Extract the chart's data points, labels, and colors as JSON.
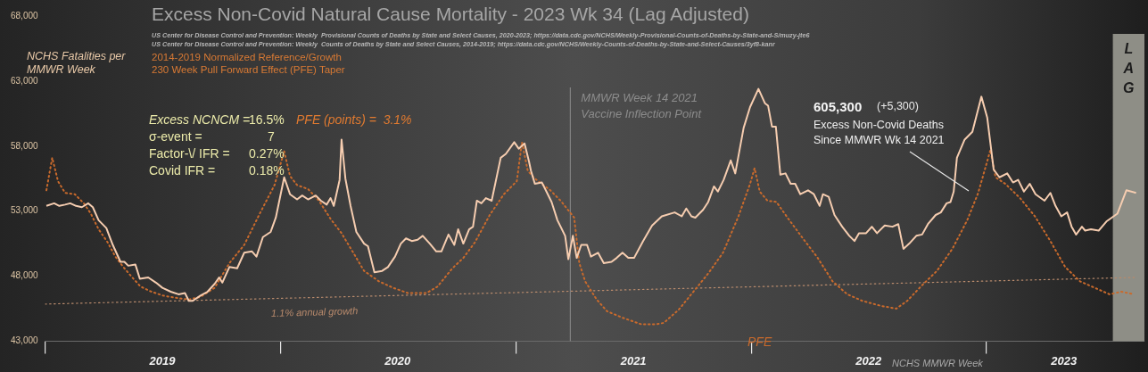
{
  "chart_data": {
    "type": "line",
    "title": "Excess Non-Covid Natural Cause Mortality - 2023 Wk 34 (Lag Adjusted)",
    "xlabel": "NCHS MMWR Week",
    "ylabel": "NCHS Fatalities per MMWR Week",
    "marker": "none",
    "xlim": [
      "2019-01-01",
      "2023-09-03"
    ],
    "xticks": [
      {
        "value": "2019-01-01",
        "label": null
      },
      {
        "value": "2019-07-02",
        "label": "2019"
      },
      {
        "value": "2020-01-01",
        "label": null
      },
      {
        "value": "2020-07-01",
        "label": "2020"
      },
      {
        "value": "2021-01-01",
        "label": null
      },
      {
        "value": "2021-07-02",
        "label": "2021"
      },
      {
        "value": "2022-01-01",
        "label": null
      },
      {
        "value": "2022-07-02",
        "label": "2022"
      },
      {
        "value": "2023-01-01",
        "label": null
      },
      {
        "value": "2023-05-01",
        "label": "2023"
      }
    ],
    "ylim": [
      43000,
      68000
    ],
    "yticks": [
      {
        "value": 43000,
        "label": "43,000"
      },
      {
        "value": 48000,
        "label": "48,000"
      },
      {
        "value": 53000,
        "label": "53,000"
      },
      {
        "value": 58000,
        "label": "58,000"
      },
      {
        "value": 63000,
        "label": "63,000"
      },
      {
        "value": 68000,
        "label": "68,000"
      }
    ],
    "series": [
      {
        "color": "#f6cdb0",
        "line_style": "solid",
        "x": [
          "2019-01-03",
          "2019-01-15",
          "2019-01-23",
          "2019-02-01",
          "2019-02-09",
          "2019-02-18",
          "2019-02-27",
          "2019-03-09",
          "2019-03-16",
          "2019-03-25",
          "2019-04-06",
          "2019-04-16",
          "2019-04-28",
          "2019-05-04",
          "2019-05-10",
          "2019-05-21",
          "2019-05-28",
          "2019-06-10",
          "2019-06-22",
          "2019-07-02",
          "2019-07-15",
          "2019-07-27",
          "2019-08-06",
          "2019-08-12",
          "2019-08-18",
          "2019-08-30",
          "2019-09-10",
          "2019-09-21",
          "2019-09-28",
          "2019-10-03",
          "2019-10-14",
          "2019-10-26",
          "2019-11-06",
          "2019-11-18",
          "2019-11-25",
          "2019-12-05",
          "2019-12-17",
          "2019-12-25",
          "2020-01-07",
          "2020-01-16",
          "2020-01-27",
          "2020-02-04",
          "2020-02-13",
          "2020-02-25",
          "2020-03-04",
          "2020-03-13",
          "2020-03-19",
          "2020-03-24",
          "2020-04-02",
          "2020-04-05",
          "2020-04-11",
          "2020-04-19",
          "2020-04-28",
          "2020-05-10",
          "2020-05-16",
          "2020-05-26",
          "2020-06-07",
          "2020-06-16",
          "2020-06-27",
          "2020-07-06",
          "2020-07-14",
          "2020-07-23",
          "2020-08-01",
          "2020-08-09",
          "2020-08-20",
          "2020-08-30",
          "2020-09-07",
          "2020-09-18",
          "2020-09-27",
          "2020-10-03",
          "2020-10-11",
          "2020-10-20",
          "2020-10-26",
          "2020-11-01",
          "2020-11-08",
          "2020-11-15",
          "2020-11-24",
          "2020-12-08",
          "2020-12-16",
          "2020-12-29",
          "2021-01-05",
          "2021-01-14",
          "2021-01-21",
          "2021-01-24",
          "2021-01-30",
          "2021-02-10",
          "2021-02-17",
          "2021-02-25",
          "2021-03-06",
          "2021-03-18",
          "2021-03-23",
          "2021-03-30",
          "2021-04-05",
          "2021-04-12",
          "2021-04-21",
          "2021-04-27",
          "2021-05-08",
          "2021-05-17",
          "2021-05-29",
          "2021-06-06",
          "2021-06-15",
          "2021-06-24",
          "2021-07-03",
          "2021-07-17",
          "2021-07-31",
          "2021-08-15",
          "2021-09-04",
          "2021-09-15",
          "2021-09-22",
          "2021-09-30",
          "2021-10-06",
          "2021-10-18",
          "2021-10-26",
          "2021-11-04",
          "2021-11-10",
          "2021-11-19",
          "2021-11-30",
          "2021-12-07",
          "2021-12-20",
          "2021-12-30",
          "2022-01-12",
          "2022-01-22",
          "2022-01-27",
          "2022-02-02",
          "2022-02-08",
          "2022-02-15",
          "2022-02-23",
          "2022-03-03",
          "2022-03-10",
          "2022-03-18",
          "2022-03-30",
          "2022-04-08",
          "2022-04-17",
          "2022-04-22",
          "2022-05-01",
          "2022-05-10",
          "2022-05-22",
          "2022-06-02",
          "2022-06-10",
          "2022-06-17",
          "2022-06-28",
          "2022-07-07",
          "2022-07-15",
          "2022-07-27",
          "2022-08-08",
          "2022-08-17",
          "2022-08-25",
          "2022-09-03",
          "2022-09-14",
          "2022-09-23",
          "2022-10-02",
          "2022-10-14",
          "2022-10-22",
          "2022-10-31",
          "2022-11-06",
          "2022-11-11",
          "2022-11-16",
          "2022-11-28",
          "2022-12-10",
          "2022-12-24",
          "2023-01-02",
          "2023-01-12",
          "2023-01-21",
          "2023-02-02",
          "2023-02-11",
          "2023-02-19",
          "2023-02-28",
          "2023-03-09",
          "2023-03-18",
          "2023-04-01",
          "2023-04-10",
          "2023-04-18",
          "2023-04-27",
          "2023-05-06",
          "2023-05-13",
          "2023-05-20",
          "2023-05-29",
          "2023-06-03",
          "2023-06-12",
          "2023-06-24",
          "2023-07-06",
          "2023-07-23",
          "2023-08-06",
          "2023-08-21"
        ],
        "values": [
          53400,
          53600,
          53400,
          53500,
          53600,
          53400,
          53300,
          53600,
          53300,
          52300,
          51700,
          50400,
          49100,
          49100,
          48800,
          48900,
          47800,
          47900,
          47500,
          47100,
          46800,
          46600,
          46700,
          46100,
          46100,
          46500,
          46800,
          47400,
          47900,
          47500,
          48700,
          48600,
          49800,
          49900,
          49500,
          51000,
          51400,
          52500,
          55600,
          54300,
          53900,
          54200,
          53900,
          54200,
          53800,
          53500,
          54000,
          53400,
          55400,
          58500,
          55500,
          53400,
          51400,
          50500,
          50300,
          48300,
          48400,
          48700,
          49500,
          50500,
          50900,
          50700,
          50800,
          51100,
          50500,
          49900,
          49900,
          51200,
          50400,
          51600,
          50500,
          51600,
          51800,
          53800,
          53600,
          54000,
          53800,
          57100,
          57400,
          58300,
          57800,
          58200,
          56800,
          56100,
          55100,
          55200,
          54500,
          53700,
          52300,
          51100,
          49300,
          51100,
          49400,
          50400,
          50400,
          49500,
          49800,
          49000,
          49100,
          49400,
          49800,
          49400,
          49400,
          50700,
          51900,
          52600,
          52900,
          52600,
          53200,
          52600,
          52500,
          53100,
          53700,
          54900,
          54500,
          55400,
          56900,
          55900,
          59400,
          61000,
          62400,
          61300,
          61100,
          59500,
          59500,
          55800,
          55900,
          55100,
          55100,
          54300,
          54600,
          54300,
          53400,
          54300,
          54100,
          52700,
          51800,
          51100,
          50700,
          51300,
          51300,
          51800,
          51300,
          51900,
          51800,
          52000,
          50100,
          50500,
          51100,
          51200,
          52000,
          52700,
          52900,
          53600,
          53700,
          54500,
          57100,
          58500,
          59100,
          61800,
          60200,
          56200,
          55600,
          55900,
          55200,
          55400,
          54500,
          55100,
          54300,
          53800,
          54400,
          53400,
          52600,
          52900,
          51800,
          51200,
          51800,
          51500,
          51600,
          51500,
          52200,
          52800,
          54600,
          54400
        ]
      },
      {
        "name": "PFE",
        "color": "#c96a2c",
        "line_style": "dotted",
        "x": [
          "2019-01-03",
          "2019-01-12",
          "2019-01-21",
          "2019-02-01",
          "2019-02-16",
          "2019-03-02",
          "2019-03-13",
          "2019-03-25",
          "2019-04-08",
          "2019-04-20",
          "2019-05-04",
          "2019-05-18",
          "2019-05-29",
          "2019-06-15",
          "2019-07-03",
          "2019-07-27",
          "2019-08-12",
          "2019-08-30",
          "2019-09-21",
          "2019-10-14",
          "2019-11-06",
          "2019-11-30",
          "2019-12-23",
          "2020-01-07",
          "2020-01-16",
          "2020-01-27",
          "2020-02-13",
          "2020-03-01",
          "2020-03-19",
          "2020-04-05",
          "2020-04-22",
          "2020-05-10",
          "2020-06-02",
          "2020-06-24",
          "2020-07-17",
          "2020-08-15",
          "2020-09-01",
          "2020-09-24",
          "2020-10-11",
          "2020-10-29",
          "2020-11-21",
          "2020-12-13",
          "2021-01-02",
          "2021-01-10",
          "2021-01-19",
          "2021-01-30",
          "2021-02-23",
          "2021-03-11",
          "2021-04-01",
          "2021-04-09",
          "2021-04-18",
          "2021-05-06",
          "2021-05-22",
          "2021-06-15",
          "2021-07-14",
          "2021-08-06",
          "2021-08-18",
          "2021-09-10",
          "2021-10-03",
          "2021-10-26",
          "2021-11-18",
          "2021-12-12",
          "2021-12-30",
          "2022-01-06",
          "2022-01-14",
          "2022-01-26",
          "2022-02-09",
          "2022-02-26",
          "2022-03-22",
          "2022-04-14",
          "2022-05-07",
          "2022-05-30",
          "2022-06-22",
          "2022-07-22",
          "2022-08-14",
          "2022-08-31",
          "2022-09-23",
          "2022-10-16",
          "2022-11-09",
          "2022-12-02",
          "2022-12-19",
          "2023-01-07",
          "2023-01-15",
          "2023-01-30",
          "2023-02-22",
          "2023-03-17",
          "2023-04-10",
          "2023-05-03",
          "2023-05-26",
          "2023-06-18",
          "2023-07-11",
          "2023-07-29",
          "2023-08-18"
        ],
        "values": [
          54600,
          57100,
          55300,
          54400,
          54300,
          53600,
          52800,
          51600,
          50600,
          49500,
          48600,
          47800,
          47200,
          46800,
          46500,
          46300,
          46200,
          46400,
          47100,
          49000,
          50400,
          52800,
          55000,
          57600,
          55700,
          55000,
          54700,
          53800,
          52400,
          51300,
          49900,
          48400,
          47600,
          47100,
          46700,
          46700,
          47200,
          48600,
          49400,
          50600,
          52700,
          54300,
          55300,
          58300,
          56100,
          55500,
          54600,
          53800,
          52500,
          49000,
          47600,
          46200,
          45300,
          44800,
          44300,
          44300,
          44400,
          45400,
          46800,
          48200,
          49800,
          52600,
          55100,
          56300,
          54500,
          53800,
          53700,
          52500,
          50900,
          49400,
          47600,
          46600,
          46100,
          45700,
          45500,
          46100,
          47300,
          48400,
          50100,
          52300,
          54400,
          57700,
          55600,
          55100,
          54000,
          52600,
          50700,
          48700,
          47600,
          47100,
          46600,
          46800,
          46600
        ]
      },
      {
        "name": "1.1% annual growth",
        "type": "line",
        "color": "#b88a6c",
        "line_style": "dotted",
        "x": [
          "2019-01-01",
          "2023-08-20"
        ],
        "values": [
          45850,
          47900
        ]
      }
    ],
    "ref_lines": [
      {
        "axis": "x",
        "value": "2021-03-26",
        "label": "MMWR Week 14 2021\nVaccine Inflection Point",
        "color": "#8c8c8c",
        "line_style": "solid"
      }
    ],
    "bands": [
      {
        "axis": "x",
        "from": "2023-07-16",
        "to": "2023-09-03",
        "label": "LAG",
        "color": "#8e8e86"
      }
    ],
    "annotations": [
      "US Center for Disease Control and Prevention: Weekly  Provisional Counts of Deaths by State and Select Causes, 2020-2023; https://data.cdc.gov/NCHS/Weekly-Provisional-Counts-of-Deaths-by-State-and-S/muzy-jte6",
      "US Center for Disease Control and Prevention: Weekly  Counts of Deaths by State and Select Causes, 2014-2019; https://data.cdc.gov/NCHS/Weekly-Counts-of-Deaths-by-State-and-Select-Causes/3yf8-kanr",
      "2014-2019 Normalized Reference/Growth",
      "230 Week Pull Forward Effect (PFE) Taper",
      "Excess NCNCM =",
      "16.5%",
      "PFE (points) =  3.1%",
      "σ-event =",
      "7",
      "Factor-\\/ IFR =",
      "0.27%",
      "Covid IFR =",
      "0.18%",
      "605,300",
      "(+5,300)",
      "Excess Non-Covid Deaths\nSince MMWR Wk 14 2021"
    ]
  }
}
